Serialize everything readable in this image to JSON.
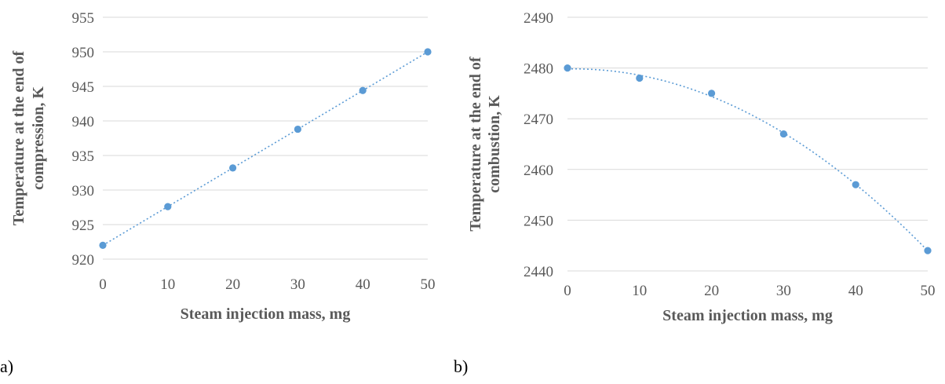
{
  "chart_data": [
    {
      "type": "scatter",
      "panel_label": "a)",
      "xlabel": "Steam injection mass, mg",
      "ylabel_lines": [
        "Temperature at the end of",
        "compression, K"
      ],
      "xlim": [
        0,
        50
      ],
      "ylim": [
        920,
        955
      ],
      "x_ticks": [
        0,
        10,
        20,
        30,
        40,
        50
      ],
      "y_ticks": [
        920,
        925,
        930,
        935,
        940,
        945,
        950,
        955
      ],
      "grid": true,
      "trendline": "linear",
      "color": "#5b9bd5",
      "series": [
        {
          "x": [
            0,
            10,
            20,
            30,
            40,
            50
          ],
          "values": [
            922.0,
            927.6,
            933.2,
            938.8,
            944.4,
            950.0
          ]
        }
      ]
    },
    {
      "type": "scatter",
      "panel_label": "b)",
      "xlabel": "Steam injection mass, mg",
      "ylabel_lines": [
        "Temperature at the end of",
        "combustion, K"
      ],
      "xlim": [
        0,
        50
      ],
      "ylim": [
        2440,
        2490
      ],
      "x_ticks": [
        0,
        10,
        20,
        30,
        40,
        50
      ],
      "y_ticks": [
        2440,
        2450,
        2460,
        2470,
        2480,
        2490
      ],
      "grid": true,
      "trendline": "polynomial",
      "color": "#5b9bd5",
      "series": [
        {
          "x": [
            0,
            10,
            20,
            30,
            40,
            50
          ],
          "values": [
            2480,
            2478,
            2475,
            2467,
            2457,
            2444
          ]
        }
      ]
    }
  ]
}
